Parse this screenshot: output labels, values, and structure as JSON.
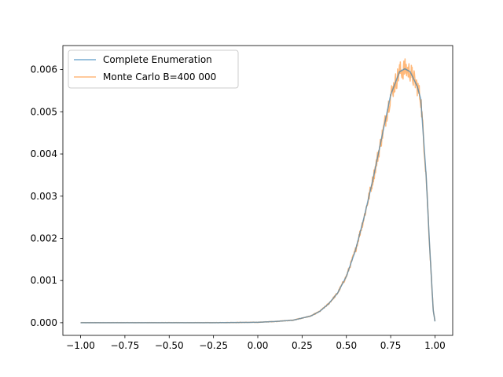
{
  "chart_data": {
    "type": "line",
    "title": "",
    "xlabel": "",
    "ylabel": "",
    "xlim": [
      -1.1,
      1.1
    ],
    "ylim": [
      -0.0003,
      0.00657
    ],
    "grid": false,
    "legend_placement": "upper-left",
    "x_ticks": [
      -1.0,
      -0.75,
      -0.5,
      -0.25,
      0.0,
      0.25,
      0.5,
      0.75,
      1.0
    ],
    "x_tick_labels": [
      "−1.00",
      "−0.75",
      "−0.50",
      "−0.25",
      "0.00",
      "0.25",
      "0.50",
      "0.75",
      "1.00"
    ],
    "y_ticks": [
      0.0,
      0.001,
      0.002,
      0.003,
      0.004,
      0.005,
      0.006
    ],
    "y_tick_labels": [
      "0.000",
      "0.001",
      "0.002",
      "0.003",
      "0.004",
      "0.005",
      "0.006"
    ],
    "series": [
      {
        "name": "Complete Enumeration",
        "color": "#1f77b4",
        "alpha": 0.6,
        "x": [
          -1.0,
          -0.75,
          -0.5,
          -0.25,
          0.0,
          0.1,
          0.2,
          0.3,
          0.35,
          0.4,
          0.45,
          0.5,
          0.55,
          0.6,
          0.65,
          0.7,
          0.75,
          0.8,
          0.83,
          0.86,
          0.9,
          0.92,
          0.95,
          0.97,
          0.99,
          1.0
        ],
        "y": [
          0.0,
          0.0,
          0.0,
          0.0,
          1e-05,
          3e-05,
          6e-05,
          0.00016,
          0.00027,
          0.00045,
          0.0007,
          0.0011,
          0.0017,
          0.0025,
          0.0034,
          0.0044,
          0.0054,
          0.00595,
          0.00602,
          0.00595,
          0.0056,
          0.0053,
          0.0035,
          0.0018,
          0.0003,
          3e-05
        ]
      },
      {
        "name": "Monte Carlo B=400 000",
        "color": "#ff7f0e",
        "alpha": 0.55,
        "x": [
          -1.0,
          -0.75,
          -0.5,
          -0.25,
          0.0,
          0.1,
          0.2,
          0.3,
          0.35,
          0.4,
          0.45,
          0.5,
          0.55,
          0.6,
          0.65,
          0.7,
          0.75,
          0.8,
          0.83,
          0.86,
          0.9,
          0.92,
          0.95,
          0.97,
          0.99,
          1.0
        ],
        "y": [
          0.0,
          0.0,
          0.0,
          0.0,
          1e-05,
          3e-05,
          6e-05,
          0.00016,
          0.00027,
          0.00045,
          0.0007,
          0.0011,
          0.0017,
          0.0025,
          0.0034,
          0.0044,
          0.0054,
          0.00595,
          0.00602,
          0.00595,
          0.0056,
          0.0053,
          0.0035,
          0.0018,
          0.0003,
          3e-05
        ],
        "noisy": true
      }
    ]
  }
}
